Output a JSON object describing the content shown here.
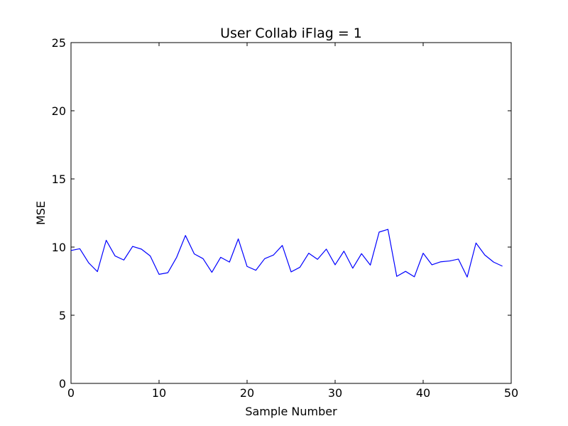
{
  "chart_data": {
    "type": "line",
    "title": "User Collab iFlag = 1",
    "xlabel": "Sample Number",
    "ylabel": "MSE",
    "xlim": [
      0,
      50
    ],
    "ylim": [
      0,
      25
    ],
    "x_ticks": [
      0,
      10,
      20,
      30,
      40,
      50
    ],
    "y_ticks": [
      0,
      5,
      10,
      15,
      20,
      25
    ],
    "x_tick_labels": [
      "0",
      "10",
      "20",
      "30",
      "40",
      "50"
    ],
    "y_tick_labels": [
      "0",
      "5",
      "10",
      "15",
      "20",
      "25"
    ],
    "grid": false,
    "series": [
      {
        "color": "#0000ff",
        "x": [
          0,
          1,
          2,
          3,
          4,
          5,
          6,
          7,
          8,
          9,
          10,
          11,
          12,
          13,
          14,
          15,
          16,
          17,
          18,
          19,
          20,
          21,
          22,
          23,
          24,
          25,
          26,
          27,
          28,
          29,
          30,
          31,
          32,
          33,
          34,
          35,
          36,
          37,
          38,
          39,
          40,
          41,
          42,
          43,
          44,
          45,
          46,
          47,
          48,
          49
        ],
        "values": [
          9.75,
          9.88,
          8.85,
          8.2,
          10.5,
          9.35,
          9.05,
          10.05,
          9.85,
          9.35,
          8.0,
          8.12,
          9.25,
          10.85,
          9.5,
          9.15,
          8.15,
          9.25,
          8.9,
          10.6,
          8.58,
          8.3,
          9.15,
          9.42,
          10.12,
          8.18,
          8.52,
          9.55,
          9.1,
          9.85,
          8.7,
          9.7,
          8.45,
          9.52,
          8.68,
          11.1,
          11.3,
          7.85,
          8.22,
          7.82,
          9.55,
          8.7,
          8.92,
          8.98,
          9.12,
          7.8,
          10.3,
          9.42,
          8.9,
          8.6
        ]
      }
    ]
  }
}
